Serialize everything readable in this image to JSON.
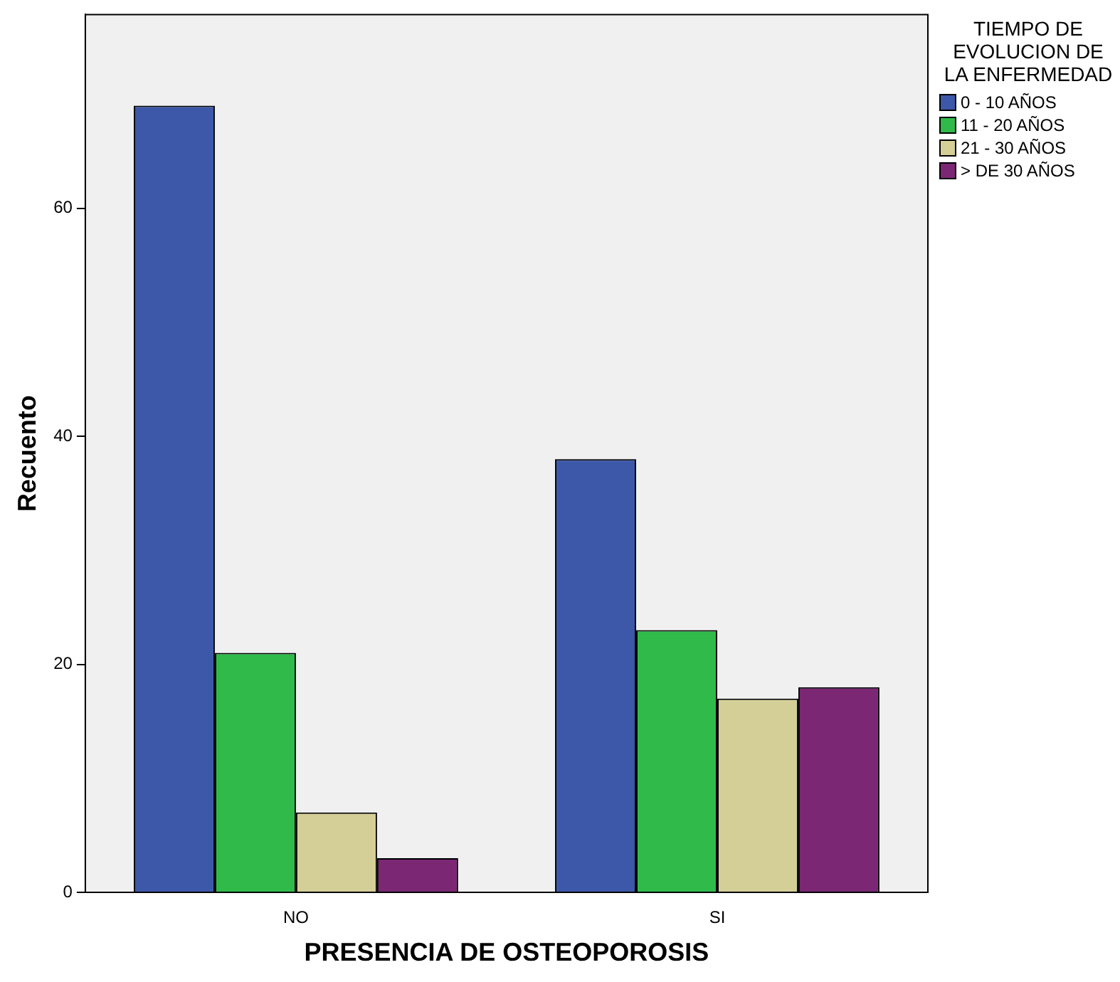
{
  "chart_data": {
    "type": "bar",
    "xlabel": "PRESENCIA DE OSTEOPOROSIS",
    "ylabel": "Recuento",
    "legend_title": "TIEMPO DE EVOLUCION DE LA ENFERMEDAD",
    "legend": "right",
    "categories": [
      "NO",
      "SI"
    ],
    "series": [
      {
        "name": "0 - 10 AÑOS",
        "color": "#3d58a8",
        "values": [
          69,
          38
        ]
      },
      {
        "name": "11 - 20 AÑOS",
        "color": "#2fba4a",
        "values": [
          21,
          23
        ]
      },
      {
        "name": "21 - 30 AÑOS",
        "color": "#d4cf97",
        "values": [
          7,
          17
        ]
      },
      {
        "name": "> DE 30 AÑOS",
        "color": "#7b2774",
        "values": [
          3,
          18
        ]
      }
    ],
    "ylim": [
      0,
      77
    ],
    "yticks": [
      0,
      20,
      40,
      60
    ],
    "grid": false
  }
}
